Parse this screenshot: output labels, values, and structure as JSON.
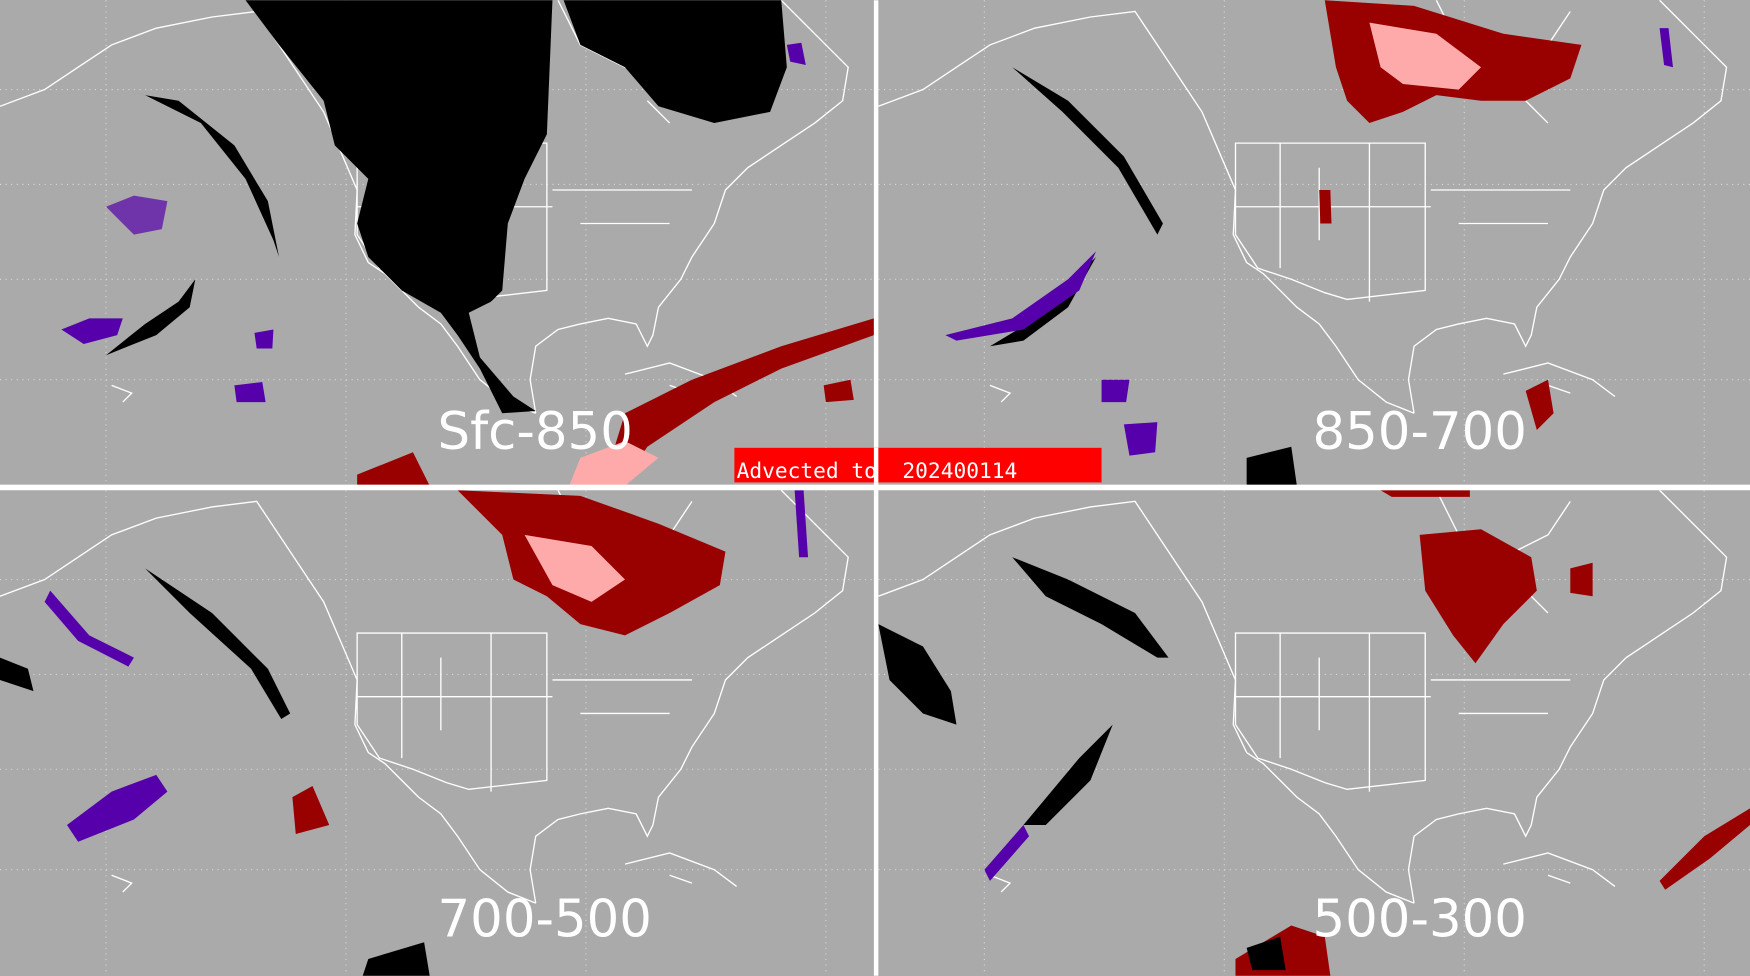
{
  "panels": [
    {
      "label": "Sfc-850"
    },
    {
      "label": "850-700"
    },
    {
      "label": "700-500"
    },
    {
      "label": "500-300"
    }
  ],
  "banner": {
    "text": "Advected to  202400114"
  },
  "colors": {
    "background": "#aaaaaa",
    "divider": "#ffffff",
    "banner": "#ff0000",
    "dark_red": "#990000",
    "pink": "#ffaaaa",
    "purple": "#5500aa",
    "black": "#000000",
    "map_lines": "#ffffff"
  }
}
